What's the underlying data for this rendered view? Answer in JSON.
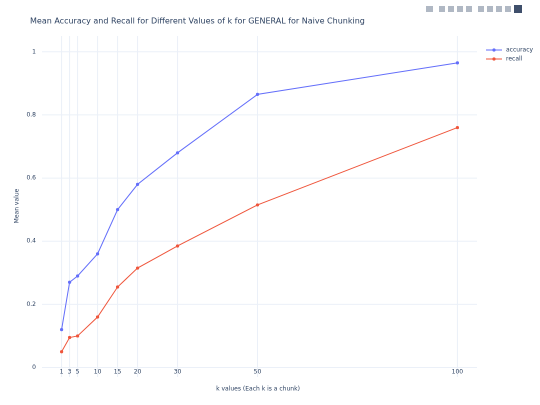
{
  "chart_data": {
    "type": "line",
    "title": "Mean Accuracy and Recall for Different Values of k for GENERAL for Naive Chunking",
    "x_label": "k values (Each k is a chunk)",
    "y_label": "Mean value",
    "x": [
      1,
      3,
      5,
      10,
      15,
      20,
      30,
      50,
      100
    ],
    "series": [
      {
        "name": "accuracy",
        "color": "#636efa",
        "values": [
          0.12,
          0.27,
          0.29,
          0.36,
          0.5,
          0.58,
          0.68,
          0.865,
          0.965
        ]
      },
      {
        "name": "recall",
        "color": "#ef553b",
        "values": [
          0.05,
          0.095,
          0.1,
          0.16,
          0.255,
          0.315,
          0.385,
          0.515,
          0.76
        ]
      }
    ],
    "xlim": [
      -3.9,
      104.9
    ],
    "ylim": [
      -0.03,
      1.05
    ],
    "xticks": [
      1,
      3,
      5,
      10,
      15,
      20,
      30,
      50,
      100
    ],
    "yticks": [
      0,
      0.2,
      0.4,
      0.6,
      0.8,
      1
    ],
    "grid": true,
    "legend": "right"
  }
}
